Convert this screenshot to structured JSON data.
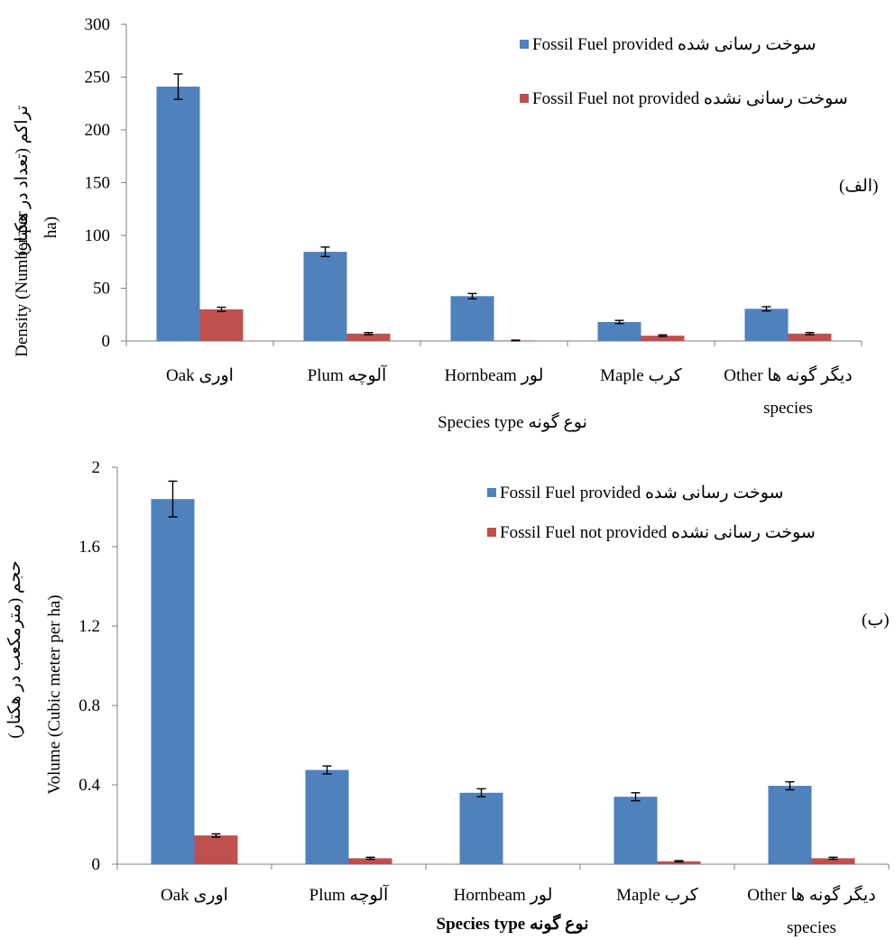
{
  "colors": {
    "provided": "#4f81bd",
    "not_provided": "#c0504d"
  },
  "chart_data": [
    {
      "type": "bar",
      "ylim": [
        0,
        300
      ],
      "yticks": [
        "0",
        "50",
        "100",
        "150",
        "200",
        "250",
        "300"
      ],
      "ytick_values": [
        0,
        50,
        100,
        150,
        200,
        250,
        300
      ],
      "ylabel_line1": "Density (Number per",
      "ylabel_line1_fa": "تراکم (تعداد در هکتار)",
      "ylabel_line2": "ha)",
      "xlabel": "Species type نوع گونه",
      "panel_label": "(الف)",
      "legend_placement": "top-right",
      "legend": [
        "Fossil Fuel provided سوخت رسانی شده",
        "Fossil Fuel not provided سوخت رسانی نشده"
      ],
      "categories": [
        {
          "line1": "Oak اوری",
          "line2": ""
        },
        {
          "line1": "Plum آلوچه",
          "line2": ""
        },
        {
          "line1": "Hornbeam لور",
          "line2": ""
        },
        {
          "line1": "Maple کرب",
          "line2": ""
        },
        {
          "line1": "Other  دیگر گونه ها",
          "line2": "species"
        }
      ],
      "series": [
        {
          "name": "Fossil Fuel provided سوخت رسانی شده",
          "values": [
            241,
            84.5,
            42.5,
            18,
            30.5
          ],
          "errors": [
            12,
            4.5,
            2.5,
            1.5,
            2
          ]
        },
        {
          "name": "Fossil Fuel not provided سوخت رسانی نشده",
          "values": [
            30,
            7,
            0.5,
            5,
            7
          ],
          "errors": [
            2,
            1,
            0.3,
            0.8,
            1
          ]
        }
      ]
    },
    {
      "type": "bar",
      "ylim": [
        0,
        2
      ],
      "yticks": [
        "0",
        "0.4",
        "0.8",
        "1.2",
        "1.6",
        "2"
      ],
      "ytick_values": [
        0,
        0.4,
        0.8,
        1.2,
        1.6,
        2
      ],
      "ylabel_line1": "Volume (Cubic meter per ha)",
      "ylabel_line1_fa": "حجم (مترمکعب در هکتار)",
      "ylabel_line2": "",
      "xlabel": "Species type  نوع گونه",
      "panel_label": "(ب)",
      "legend_placement": "top-right",
      "legend": [
        "Fossil Fuel provided سوخت رسانی شده",
        "Fossil Fuel not provided سوخت رسانی نشده"
      ],
      "categories": [
        {
          "line1": "Oak اوری",
          "line2": ""
        },
        {
          "line1": "Plum آلوچه",
          "line2": ""
        },
        {
          "line1": "Hornbeam لور",
          "line2": ""
        },
        {
          "line1": "Maple کرب",
          "line2": ""
        },
        {
          "line1": "Other  دیگر گونه ها",
          "line2": "species"
        }
      ],
      "series": [
        {
          "name": "Fossil Fuel provided سوخت رسانی شده",
          "values": [
            1.84,
            0.475,
            0.36,
            0.34,
            0.395
          ],
          "errors": [
            0.09,
            0.02,
            0.02,
            0.02,
            0.02
          ]
        },
        {
          "name": "Fossil Fuel not provided سوخت رسانی نشده",
          "values": [
            0.145,
            0.03,
            0.0,
            0.015,
            0.03
          ],
          "errors": [
            0.008,
            0.005,
            0.0,
            0.003,
            0.005
          ]
        }
      ]
    }
  ]
}
